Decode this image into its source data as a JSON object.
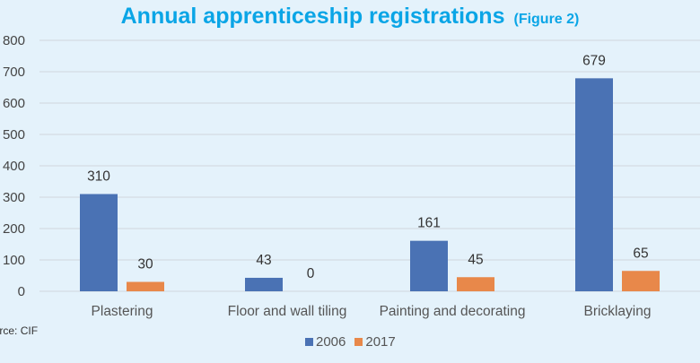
{
  "chart_data": {
    "type": "bar",
    "title": "Annual apprenticeship registrations",
    "subtitle": "(Figure 2)",
    "categories": [
      "Plastering",
      "Floor and wall tiling",
      "Painting and decorating",
      "Bricklaying"
    ],
    "series": [
      {
        "name": "2006",
        "values": [
          310,
          43,
          161,
          679
        ],
        "color": "#4a72b4"
      },
      {
        "name": "2017",
        "values": [
          30,
          0,
          45,
          65
        ],
        "color": "#e8884a"
      }
    ],
    "ylim": [
      0,
      800
    ],
    "yticks": [
      0,
      100,
      200,
      300,
      400,
      500,
      600,
      700,
      800
    ],
    "grid": true,
    "legend": "bottom",
    "source": "Source: CIF",
    "title_color": "#0aa5e6"
  }
}
